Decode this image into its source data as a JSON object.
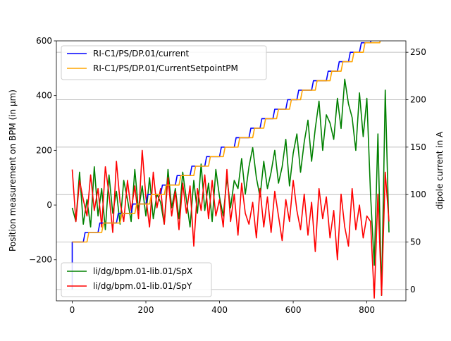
{
  "chart_data": {
    "type": "line",
    "x_ticks": [
      0,
      200,
      400,
      600,
      800
    ],
    "y_left": {
      "label": "Position measurement on BPM (in μm)",
      "ticks": [
        -200,
        0,
        200,
        400,
        600
      ],
      "tick_labels": [
        "−200",
        "0",
        "200",
        "400",
        "600"
      ],
      "range": [
        -350,
        600
      ]
    },
    "y_right": {
      "label": "dipole current in A",
      "ticks": [
        0,
        50,
        100,
        150,
        200,
        250
      ],
      "range": [
        -12,
        262
      ]
    },
    "x_range": [
      -43,
      906
    ],
    "grid": "horizontal, right axis",
    "legend_top": {
      "placement": "upper-left",
      "entries": [
        {
          "name": "RI-C1/PS/DP.01/current",
          "color": "#0000ff"
        },
        {
          "name": "RI-C1/PS/DP.01/CurrentSetpointPM",
          "color": "#ffa500"
        }
      ]
    },
    "legend_bottom": {
      "placement": "lower-left",
      "entries": [
        {
          "name": "li/dg/bpm.01-lib.01/SpX",
          "color": "#008000"
        },
        {
          "name": "li/dg/bpm.01-lib.01/SpY",
          "color": "#ff0000"
        }
      ]
    },
    "series": [
      {
        "name": "RI-C1/PS/DP.01/current",
        "axis": "right",
        "color": "#0000ff",
        "x": [
          0,
          0,
          5,
          30,
          35,
          70,
          75,
          120,
          125,
          160,
          165,
          200,
          205,
          240,
          245,
          280,
          285,
          320,
          325,
          360,
          365,
          400,
          405,
          440,
          445,
          480,
          485,
          510,
          515,
          545,
          550,
          580,
          585,
          610,
          615,
          650,
          655,
          690,
          695,
          720,
          725,
          750,
          755,
          780,
          785,
          810,
          815,
          840,
          845,
          860
        ],
        "y": [
          0,
          50,
          50,
          50,
          60,
          60,
          70,
          70,
          80,
          80,
          90,
          90,
          100,
          100,
          110,
          110,
          120,
          120,
          130,
          130,
          140,
          140,
          150,
          150,
          160,
          160,
          170,
          170,
          180,
          180,
          190,
          190,
          200,
          200,
          210,
          210,
          220,
          220,
          230,
          230,
          240,
          240,
          250,
          250,
          260,
          260,
          270,
          270,
          270,
          270
        ]
      },
      {
        "name": "RI-C1/PS/DP.01/CurrentSetpointPM",
        "axis": "right",
        "color": "#ffa500",
        "x": [
          0,
          40,
          45,
          80,
          85,
          130,
          135,
          170,
          175,
          210,
          215,
          250,
          255,
          290,
          295,
          330,
          335,
          370,
          375,
          410,
          415,
          450,
          455,
          490,
          495,
          520,
          525,
          555,
          560,
          590,
          595,
          620,
          625,
          660,
          665,
          700,
          705,
          730,
          735,
          760,
          765,
          790,
          795,
          835,
          840,
          860
        ],
        "y": [
          50,
          50,
          60,
          60,
          70,
          70,
          80,
          80,
          90,
          90,
          100,
          100,
          110,
          110,
          120,
          120,
          130,
          130,
          140,
          140,
          150,
          150,
          160,
          160,
          170,
          170,
          180,
          180,
          190,
          190,
          200,
          200,
          210,
          210,
          220,
          220,
          230,
          230,
          240,
          240,
          250,
          250,
          260,
          260,
          270,
          270
        ]
      },
      {
        "name": "li/dg/bpm.01-lib.01/SpX",
        "axis": "left",
        "color": "#008000",
        "x": [
          0,
          10,
          20,
          30,
          40,
          50,
          60,
          70,
          80,
          90,
          100,
          110,
          120,
          130,
          140,
          150,
          160,
          170,
          180,
          190,
          200,
          210,
          220,
          230,
          240,
          250,
          260,
          270,
          280,
          290,
          300,
          310,
          320,
          330,
          340,
          350,
          360,
          370,
          380,
          390,
          400,
          410,
          420,
          430,
          440,
          450,
          460,
          470,
          480,
          490,
          500,
          510,
          520,
          530,
          540,
          550,
          560,
          570,
          580,
          590,
          600,
          610,
          620,
          630,
          640,
          650,
          660,
          670,
          680,
          690,
          700,
          710,
          720,
          730,
          740,
          750,
          760,
          770,
          780,
          790,
          800,
          810,
          820,
          830,
          840,
          850,
          860
        ],
        "y": [
          -10,
          -60,
          120,
          -70,
          20,
          -80,
          140,
          -40,
          60,
          -90,
          110,
          -30,
          50,
          -70,
          90,
          20,
          -60,
          130,
          -20,
          70,
          -40,
          100,
          -50,
          40,
          10,
          -70,
          130,
          -10,
          60,
          -50,
          120,
          20,
          -80,
          90,
          -30,
          150,
          -20,
          80,
          -60,
          130,
          30,
          -40,
          100,
          -10,
          90,
          60,
          170,
          40,
          140,
          210,
          100,
          30,
          160,
          60,
          120,
          200,
          80,
          140,
          240,
          70,
          190,
          260,
          120,
          230,
          310,
          160,
          280,
          380,
          200,
          330,
          300,
          240,
          390,
          280,
          460,
          370,
          320,
          200,
          410,
          250,
          390,
          40,
          -220,
          260,
          -330,
          420,
          -100
        ]
      },
      {
        "name": "li/dg/bpm.01-lib.01/SpY",
        "axis": "left",
        "color": "#ff0000",
        "x": [
          0,
          10,
          20,
          30,
          40,
          50,
          60,
          70,
          80,
          90,
          100,
          110,
          120,
          130,
          140,
          150,
          160,
          170,
          180,
          190,
          200,
          210,
          220,
          230,
          240,
          250,
          260,
          270,
          280,
          290,
          300,
          310,
          320,
          330,
          340,
          350,
          360,
          370,
          380,
          390,
          400,
          410,
          420,
          430,
          440,
          450,
          460,
          470,
          480,
          490,
          500,
          510,
          520,
          530,
          540,
          550,
          560,
          570,
          580,
          590,
          600,
          610,
          620,
          630,
          640,
          650,
          660,
          670,
          680,
          690,
          700,
          710,
          720,
          730,
          740,
          750,
          760,
          770,
          780,
          790,
          800,
          810,
          820,
          830,
          840,
          850,
          860
        ],
        "y": [
          130,
          -60,
          90,
          20,
          -40,
          110,
          -20,
          60,
          -80,
          140,
          40,
          -100,
          160,
          10,
          -60,
          90,
          -20,
          70,
          -50,
          200,
          30,
          -80,
          120,
          -10,
          60,
          -70,
          100,
          -40,
          50,
          -90,
          80,
          -30,
          70,
          -150,
          60,
          -20,
          110,
          -50,
          90,
          -40,
          20,
          -80,
          130,
          -60,
          40,
          -110,
          80,
          -30,
          -70,
          10,
          -120,
          60,
          -80,
          30,
          -100,
          50,
          -40,
          -130,
          20,
          -60,
          90,
          -20,
          -90,
          40,
          -110,
          10,
          -170,
          60,
          -50,
          30,
          -120,
          -20,
          -200,
          40,
          -80,
          -150,
          60,
          -90,
          0,
          -120,
          -40,
          -60,
          -340,
          40,
          -330,
          120,
          -60
        ]
      }
    ]
  }
}
